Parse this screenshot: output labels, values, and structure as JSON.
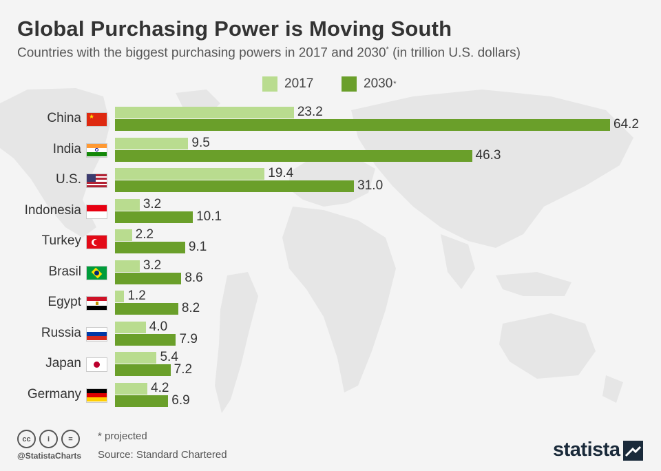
{
  "header": {
    "title": "Global Purchasing Power is Moving South",
    "subtitle": "Countries with the biggest purchasing powers in 2017 and 2030",
    "subtitle_sup": "*",
    "subtitle_tail": " (in trillion U.S. dollars)"
  },
  "colors": {
    "series_2017": "#b9dc8f",
    "series_2030": "#6a9f2a",
    "map": "#e6e6e6"
  },
  "chart_data": {
    "type": "bar",
    "orientation": "horizontal",
    "title": "Global Purchasing Power is Moving South",
    "subtitle": "Countries with the biggest purchasing powers in 2017 and 2030* (in trillion U.S. dollars)",
    "categories": [
      "China",
      "India",
      "U.S.",
      "Indonesia",
      "Turkey",
      "Brasil",
      "Egypt",
      "Russia",
      "Japan",
      "Germany"
    ],
    "series": [
      {
        "name": "2017",
        "values": [
          23.2,
          9.5,
          19.4,
          3.2,
          2.2,
          3.2,
          1.2,
          4.0,
          5.4,
          4.2
        ]
      },
      {
        "name": "2030",
        "name_sup": "*",
        "values": [
          64.2,
          46.3,
          31.0,
          10.1,
          9.1,
          8.6,
          8.2,
          7.9,
          7.2,
          6.9
        ]
      }
    ],
    "xlim": [
      0,
      64.2
    ],
    "legend": "top",
    "grid": false
  },
  "flags": [
    "china-flag",
    "india-flag",
    "us-flag",
    "indonesia-flag",
    "turkey-flag",
    "brazil-flag",
    "egypt-flag",
    "russia-flag",
    "japan-flag",
    "germany-flag"
  ],
  "footer": {
    "note": "* projected",
    "source": "Source: Standard Chartered",
    "handle": "@StatistaCharts",
    "brand": "statista",
    "cc_icons": [
      "cc",
      "i",
      "="
    ]
  }
}
